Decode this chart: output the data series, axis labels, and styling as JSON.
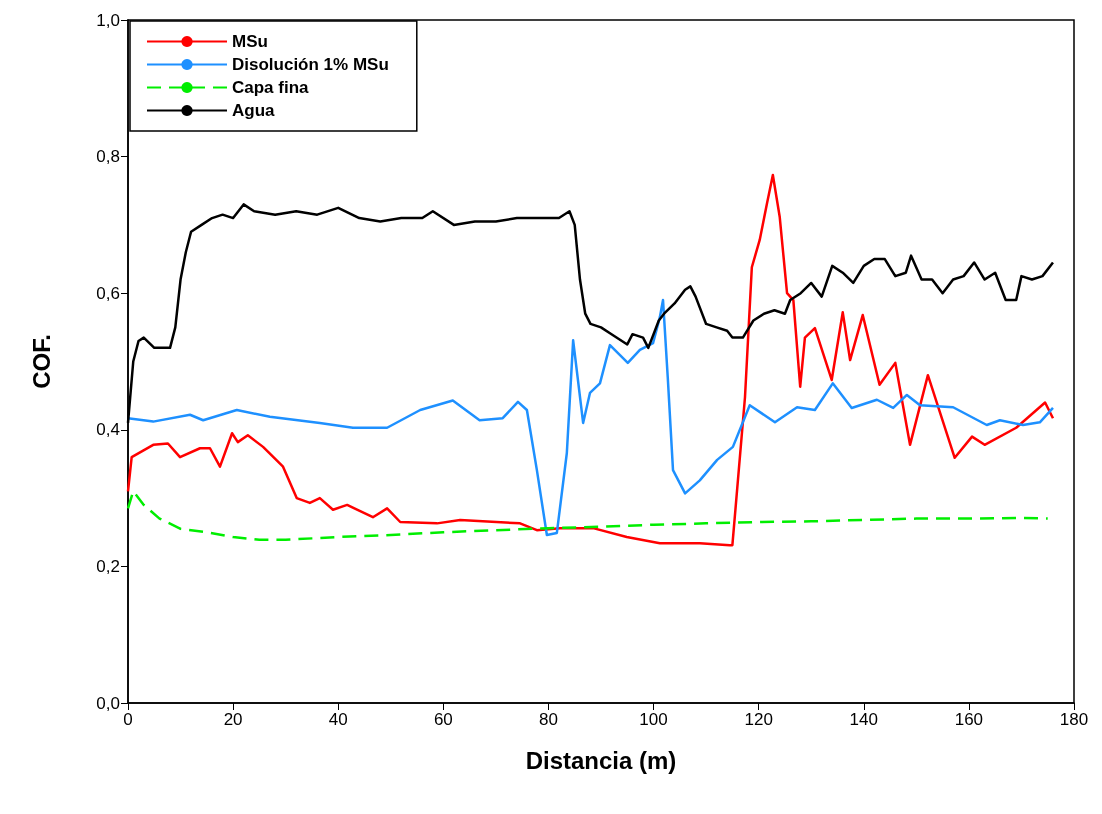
{
  "chart_data": {
    "type": "line",
    "xlabel": "Distancia (m)",
    "ylabel": "COF.",
    "xlim": [
      0,
      180
    ],
    "xticks": [
      0,
      20,
      40,
      60,
      80,
      100,
      120,
      140,
      160,
      180
    ],
    "ylim": [
      0,
      1
    ],
    "yticks": [
      {
        "value": 0,
        "label": "0,0"
      },
      {
        "value": 0.2,
        "label": "0,2"
      },
      {
        "value": 0.4,
        "label": "0,4"
      },
      {
        "value": 0.6,
        "label": "0,6"
      },
      {
        "value": 0.8,
        "label": "0,8"
      },
      {
        "value": 1,
        "label": "1,0"
      }
    ],
    "grid": false,
    "legend": "top left",
    "marker": "none",
    "series": [
      {
        "name": "MSu",
        "color": "#ff0000",
        "line_style": "solid",
        "x": [
          0,
          0.7,
          4.8,
          7.6,
          9.9,
          13.7,
          15.6,
          17.5,
          19.8,
          20.9,
          22.8,
          25.7,
          29.5,
          32.1,
          34.6,
          36.5,
          39,
          41.7,
          46.6,
          49.3,
          51.8,
          58.8,
          63.2,
          74.6,
          77.8,
          82.2,
          88.5,
          94.9,
          101.2,
          108.8,
          114.5,
          115,
          117.4,
          118.7,
          120.2,
          121.6,
          122.7,
          124,
          125.4,
          126.6,
          127.9,
          128.8,
          130.7,
          133.9,
          136,
          137.4,
          139.8,
          143,
          146,
          148.8,
          152.2,
          157.3,
          160.6,
          163,
          169,
          174.5,
          176
        ],
        "values": [
          0.31,
          0.36,
          0.378,
          0.38,
          0.36,
          0.373,
          0.373,
          0.346,
          0.395,
          0.382,
          0.392,
          0.375,
          0.346,
          0.3,
          0.293,
          0.3,
          0.283,
          0.29,
          0.272,
          0.285,
          0.265,
          0.263,
          0.268,
          0.263,
          0.253,
          0.256,
          0.256,
          0.243,
          0.234,
          0.234,
          0.231,
          0.231,
          0.448,
          0.638,
          0.678,
          0.732,
          0.773,
          0.712,
          0.6,
          0.59,
          0.463,
          0.535,
          0.549,
          0.473,
          0.572,
          0.502,
          0.568,
          0.466,
          0.498,
          0.378,
          0.48,
          0.359,
          0.39,
          0.378,
          0.403,
          0.44,
          0.417
        ]
      },
      {
        "name": "Disolución 1% MSu",
        "color": "#1e90ff",
        "line_style": "solid",
        "x": [
          0,
          4.8,
          11.8,
          14.3,
          20.7,
          27,
          36.5,
          42.8,
          49.3,
          55.6,
          61.8,
          66.9,
          71.3,
          74.2,
          75.9,
          77.8,
          79.7,
          81.6,
          83.5,
          84.7,
          86.6,
          87.9,
          89.8,
          91.7,
          95.1,
          97.4,
          99.9,
          101.2,
          101.8,
          102.7,
          103.7,
          106,
          108.8,
          112.1,
          115.1,
          118.3,
          123.1,
          127.3,
          130.7,
          134.1,
          137.7,
          142.5,
          145.6,
          148.2,
          150.7,
          157,
          163.4,
          165.9,
          170.3,
          173.5,
          176
        ],
        "values": [
          0.417,
          0.412,
          0.422,
          0.414,
          0.429,
          0.419,
          0.41,
          0.403,
          0.403,
          0.429,
          0.443,
          0.414,
          0.417,
          0.441,
          0.429,
          0.341,
          0.246,
          0.249,
          0.366,
          0.531,
          0.41,
          0.454,
          0.468,
          0.524,
          0.498,
          0.517,
          0.527,
          0.565,
          0.59,
          0.477,
          0.341,
          0.307,
          0.326,
          0.356,
          0.375,
          0.436,
          0.411,
          0.433,
          0.429,
          0.468,
          0.432,
          0.444,
          0.432,
          0.451,
          0.436,
          0.433,
          0.407,
          0.414,
          0.407,
          0.411,
          0.432
        ]
      },
      {
        "name": "Capa fina",
        "color": "#00ee00",
        "line_style": "dashed",
        "x": [
          0,
          1,
          3,
          6,
          10,
          15,
          20,
          25,
          30,
          40,
          50,
          60,
          70,
          80,
          90,
          100,
          110,
          120,
          130,
          140,
          150,
          160,
          170,
          175
        ],
        "values": [
          0.285,
          0.31,
          0.29,
          0.27,
          0.255,
          0.25,
          0.243,
          0.239,
          0.239,
          0.243,
          0.246,
          0.25,
          0.253,
          0.256,
          0.258,
          0.261,
          0.263,
          0.265,
          0.266,
          0.268,
          0.27,
          0.27,
          0.271,
          0.27
        ]
      },
      {
        "name": "Agua",
        "color": "#000000",
        "line_style": "solid",
        "x": [
          0,
          1,
          2,
          3,
          5,
          8,
          9,
          10,
          11,
          12,
          14,
          16,
          18,
          20,
          22,
          24,
          28,
          32,
          36,
          40,
          44,
          48,
          52,
          56,
          58,
          62,
          66,
          70,
          74,
          78,
          82,
          84,
          85,
          86,
          87,
          88,
          90,
          92,
          95,
          96,
          98,
          99,
          101,
          102,
          104,
          106,
          107,
          108,
          110,
          112,
          114,
          115,
          117,
          119,
          121,
          123,
          125,
          126,
          128,
          130,
          132,
          134,
          136,
          138,
          140,
          142,
          144,
          146,
          148,
          149,
          151,
          153,
          155,
          157,
          159,
          161,
          163,
          165,
          167,
          169,
          170,
          172,
          174,
          176
        ],
        "values": [
          0.41,
          0.5,
          0.53,
          0.535,
          0.52,
          0.52,
          0.55,
          0.62,
          0.66,
          0.69,
          0.7,
          0.71,
          0.715,
          0.71,
          0.73,
          0.72,
          0.715,
          0.72,
          0.715,
          0.725,
          0.71,
          0.705,
          0.71,
          0.71,
          0.72,
          0.7,
          0.705,
          0.705,
          0.71,
          0.71,
          0.71,
          0.72,
          0.7,
          0.62,
          0.57,
          0.555,
          0.55,
          0.54,
          0.525,
          0.54,
          0.535,
          0.52,
          0.56,
          0.57,
          0.585,
          0.605,
          0.61,
          0.595,
          0.555,
          0.55,
          0.545,
          0.535,
          0.535,
          0.56,
          0.57,
          0.575,
          0.57,
          0.59,
          0.6,
          0.615,
          0.595,
          0.64,
          0.63,
          0.615,
          0.64,
          0.65,
          0.65,
          0.625,
          0.63,
          0.655,
          0.62,
          0.62,
          0.6,
          0.62,
          0.625,
          0.645,
          0.62,
          0.63,
          0.59,
          0.59,
          0.625,
          0.62,
          0.625,
          0.645
        ]
      }
    ]
  }
}
